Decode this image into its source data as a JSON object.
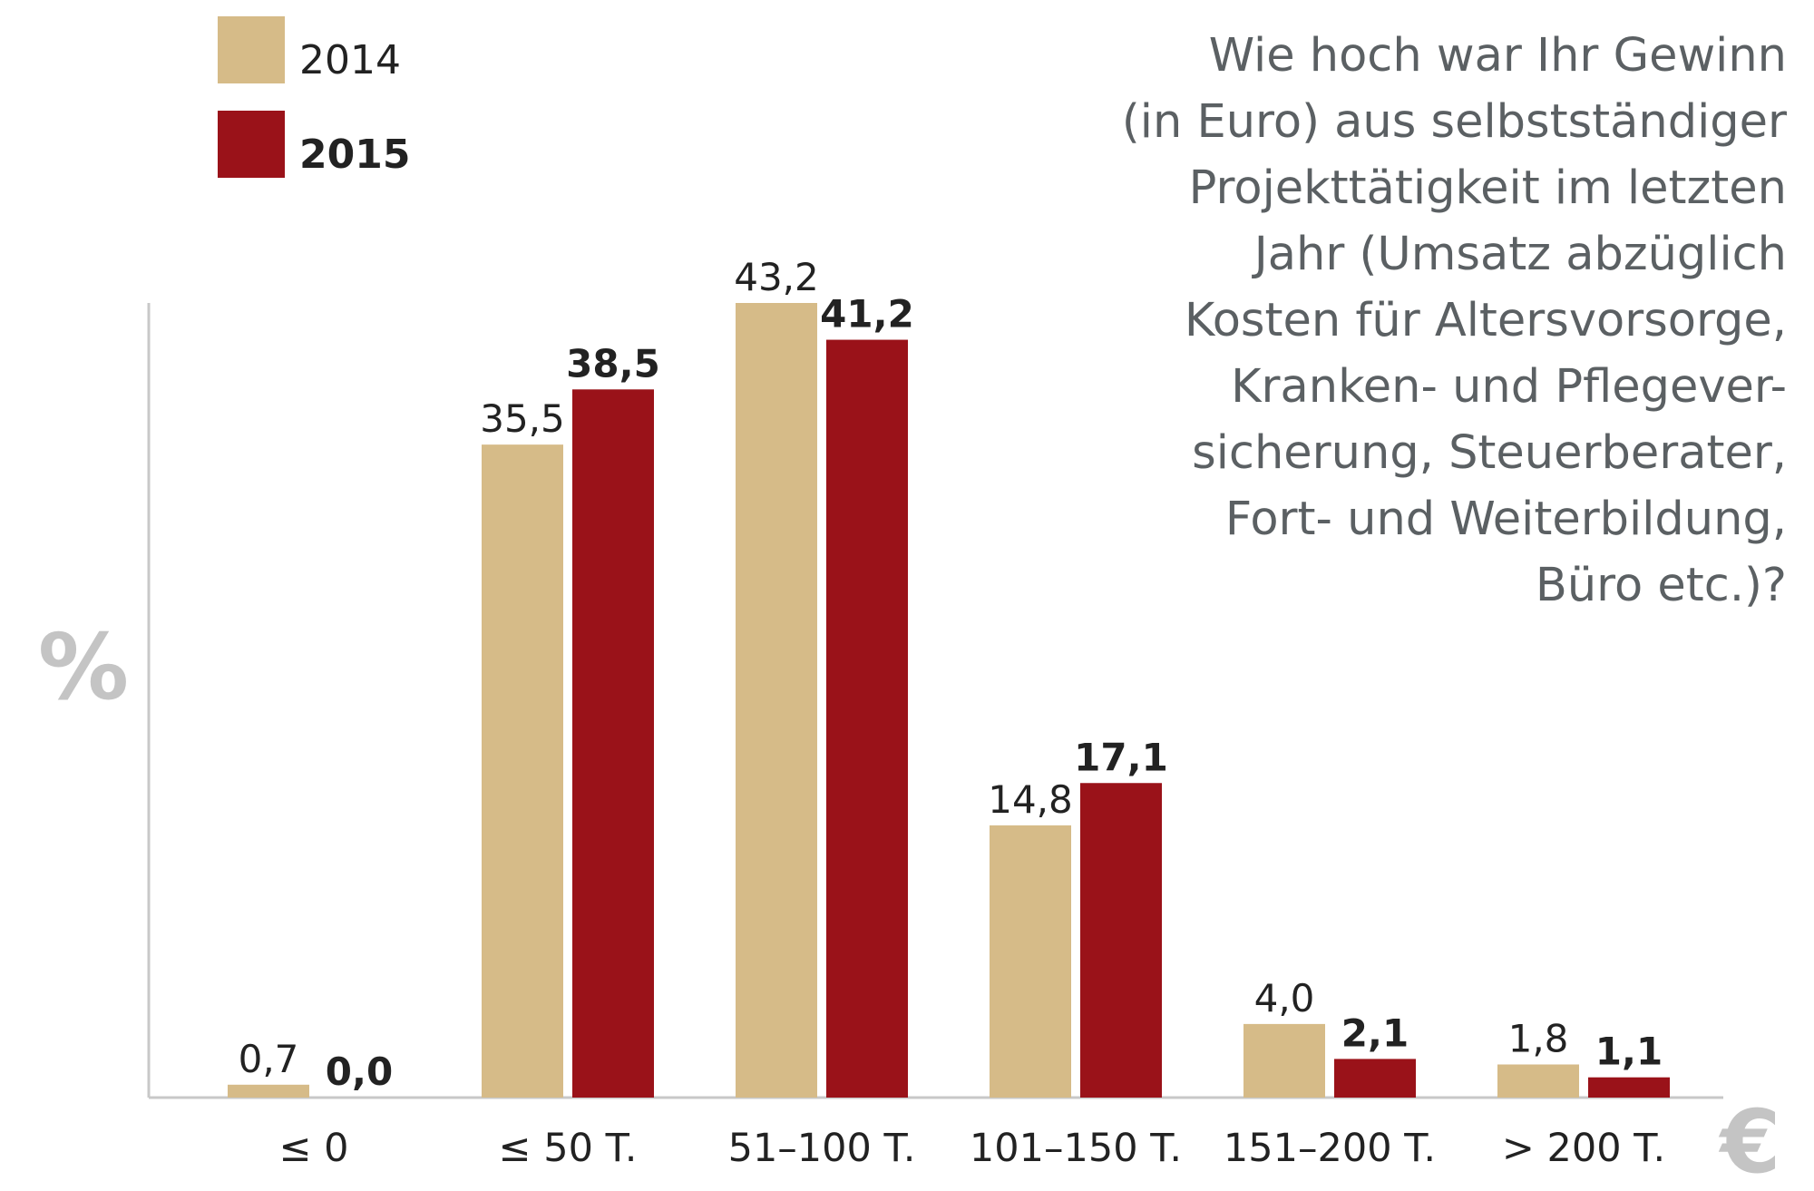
{
  "chart_data": {
    "type": "bar",
    "title": "Wie hoch war Ihr Gewinn (in Euro) aus selbstständiger Projekttätigkeit im letzten Jahr (Umsatz abzüglich Kosten für Altersvorsorge, Kranken- und Pflegever-sicherung, Steuerberater, Fort- und Weiterbildung, Büro etc.)?",
    "title_lines": [
      "Wie hoch war Ihr Gewinn",
      "(in Euro) aus selbstständiger",
      "Projekttätigkeit im letzten",
      "Jahr (Umsatz abzüglich",
      "Kosten für Altersvorsorge,",
      "Kranken- und Pflegever-",
      "sicherung, Steuerberater,",
      "Fort- und Weiterbildung,",
      "Büro etc.)?"
    ],
    "ylabel": "%",
    "xlabel": "€",
    "categories": [
      "≤ 0",
      "≤ 50 T.",
      "51–100 T.",
      "101–150 T.",
      "151–200 T.",
      "> 200 T."
    ],
    "series": [
      {
        "name": "2014",
        "color": "#d6bb88",
        "values": [
          0.7,
          35.5,
          43.2,
          14.8,
          4.0,
          1.8
        ],
        "labels": [
          "0,7",
          "35,5",
          "43,2",
          "14,8",
          "4,0",
          "1,8"
        ]
      },
      {
        "name": "2015",
        "color": "#9a1219",
        "values": [
          0.0,
          38.5,
          41.2,
          17.1,
          2.1,
          1.1
        ],
        "labels": [
          "0,0",
          "38,5",
          "41,2",
          "17,1",
          "2,1",
          "1,1"
        ]
      }
    ],
    "ylim": [
      0,
      43.2
    ],
    "grid": false,
    "legend": "top-left",
    "axis_color": "#c8c8c8",
    "text_color": "#5b6063"
  }
}
